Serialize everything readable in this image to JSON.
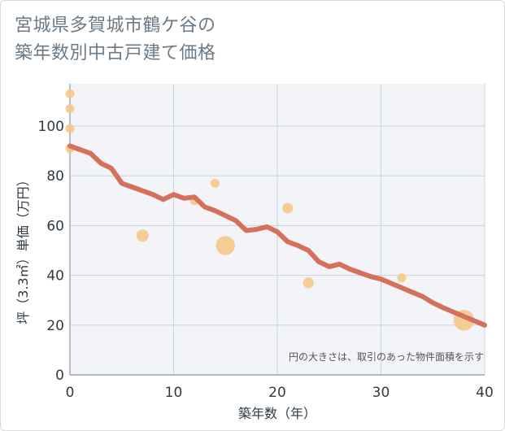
{
  "title_lines": [
    "宮城県多賀城市鶴ケ谷の",
    "築年数別中古戸建て価格"
  ],
  "colors": {
    "plot_bg": "#f3f4f8",
    "grid": "#c9d3dd",
    "line": "#d4705c",
    "bubble": "#f5c88a",
    "title": "#6b7a86"
  },
  "chart_data": {
    "type": "scatter",
    "title": "宮城県多賀城市鶴ケ谷の築年数別中古戸建て価格",
    "xlabel": "築年数（年）",
    "ylabel": "坪（3.3㎡）単価（万円）",
    "xlim": [
      0,
      40
    ],
    "ylim": [
      0,
      117
    ],
    "x_ticks": [
      0,
      10,
      20,
      30,
      40
    ],
    "y_ticks": [
      0,
      20,
      40,
      60,
      80,
      100
    ],
    "grid": true,
    "note": "円の大きさは、取引のあった物件面積を示す",
    "points": [
      {
        "x": 0,
        "y": 113,
        "size": 1
      },
      {
        "x": 0,
        "y": 107,
        "size": 1
      },
      {
        "x": 0,
        "y": 99,
        "size": 1
      },
      {
        "x": 0,
        "y": 91,
        "size": 1
      },
      {
        "x": 7,
        "y": 56,
        "size": 2
      },
      {
        "x": 12,
        "y": 70,
        "size": 1
      },
      {
        "x": 14,
        "y": 77,
        "size": 1
      },
      {
        "x": 15,
        "y": 52,
        "size": 5
      },
      {
        "x": 21,
        "y": 67,
        "size": 1.5
      },
      {
        "x": 23,
        "y": 37,
        "size": 1.5
      },
      {
        "x": 32,
        "y": 39,
        "size": 1
      },
      {
        "x": 38,
        "y": 22,
        "size": 6
      }
    ],
    "trend": {
      "x": [
        0,
        1,
        2,
        3,
        4,
        5,
        6,
        7,
        8,
        9,
        10,
        11,
        12,
        13,
        14,
        15,
        16,
        17,
        18,
        19,
        20,
        21,
        22,
        23,
        24,
        25,
        26,
        27,
        28,
        29,
        30,
        32,
        34,
        35,
        36,
        38,
        40
      ],
      "y": [
        92,
        90.5,
        89,
        85,
        83,
        77,
        75.5,
        74,
        72.5,
        70.5,
        72.5,
        71,
        71.5,
        67.5,
        66,
        64,
        62,
        58,
        58.5,
        59.5,
        57.5,
        53.5,
        52,
        50,
        45.5,
        43.5,
        44.5,
        42.5,
        41,
        39.5,
        38.5,
        35,
        31.5,
        29,
        27,
        23.5,
        20
      ]
    }
  }
}
